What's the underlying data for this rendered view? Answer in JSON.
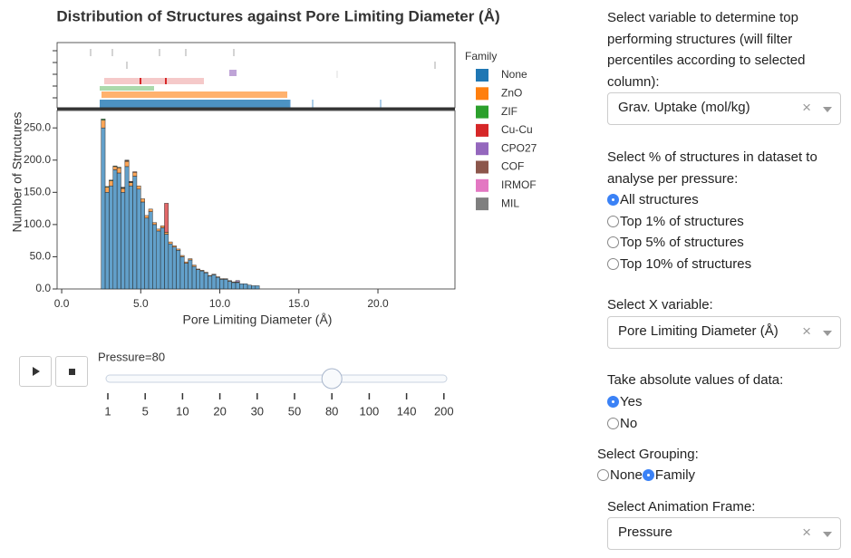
{
  "chart_data": {
    "type": "histogram",
    "title": "Distribution of Structures against Pore Limiting Diameter (Å)",
    "xlabel": "Pore Limiting Diameter (Å)",
    "ylabel": "Number of Structures",
    "legend_title": "Family",
    "bins": [
      2.5,
      2.75,
      3.0,
      3.25,
      3.5,
      3.75,
      4.0,
      4.25,
      4.5,
      4.75,
      5.0,
      5.25,
      5.5,
      5.75,
      6.0,
      6.25,
      6.5,
      6.75,
      7.0,
      7.25,
      7.5,
      7.75,
      8.0,
      8.25,
      8.5,
      8.75,
      9.0,
      9.25,
      9.5,
      9.75,
      10.0,
      10.25,
      10.5,
      10.75,
      11.0,
      11.25,
      11.5,
      11.75,
      12.0,
      12.25,
      12.5
    ],
    "series": [
      {
        "name": "None",
        "color": "#1f77b4",
        "values": [
          250,
          150,
          160,
          185,
          180,
          150,
          190,
          160,
          175,
          155,
          135,
          110,
          120,
          100,
          90,
          95,
          85,
          70,
          65,
          60,
          50,
          40,
          45,
          35,
          30,
          28,
          25,
          20,
          22,
          18,
          15,
          15,
          12,
          10,
          10,
          8,
          8,
          6,
          5,
          5
        ]
      },
      {
        "name": "ZnO",
        "color": "#ff7f0e",
        "values": [
          12,
          8,
          8,
          5,
          8,
          6,
          8,
          5,
          6,
          5,
          5,
          4,
          4,
          3,
          3,
          3,
          3,
          3,
          2,
          2,
          2,
          2,
          2,
          2,
          1,
          1,
          1,
          1,
          1,
          1,
          1,
          1,
          1,
          1,
          1,
          0,
          0,
          0,
          0,
          0
        ]
      },
      {
        "name": "ZIF",
        "color": "#2ca02c",
        "values": [
          2,
          1,
          1,
          1,
          1,
          1,
          1,
          1,
          0,
          0,
          0,
          0,
          0,
          0,
          0,
          0,
          0,
          0,
          0,
          0,
          0,
          0,
          0,
          0,
          0,
          0,
          0,
          0,
          0,
          0,
          0,
          0,
          0,
          0,
          0,
          0,
          0,
          0,
          0,
          0
        ]
      },
      {
        "name": "Cu-Cu",
        "color": "#d62728",
        "values": [
          0,
          0,
          0,
          0,
          0,
          1,
          1,
          1,
          1,
          0,
          0,
          0,
          0,
          0,
          0,
          0,
          45,
          0,
          0,
          0,
          0,
          0,
          0,
          0,
          0,
          0,
          0,
          0,
          0,
          0,
          0,
          0,
          0,
          0,
          0,
          0,
          0,
          0,
          0,
          0
        ]
      },
      {
        "name": "CPO27",
        "color": "#9467bd",
        "values": [
          0,
          0,
          0,
          0,
          0,
          0,
          0,
          0,
          0,
          0,
          0,
          0,
          0,
          0,
          0,
          0,
          0,
          0,
          0,
          0,
          0,
          0,
          0,
          0,
          0,
          0,
          0,
          0,
          0,
          0,
          0,
          0,
          0,
          0,
          2,
          0,
          0,
          0,
          0,
          0
        ]
      },
      {
        "name": "COF",
        "color": "#8c564b",
        "values": [
          0,
          0,
          0,
          0,
          0,
          0,
          0,
          0,
          0,
          0,
          0,
          0,
          0,
          0,
          0,
          0,
          0,
          0,
          0,
          0,
          0,
          0,
          0,
          0,
          0,
          0,
          0,
          0,
          0,
          0,
          0,
          0,
          0,
          0,
          0,
          0,
          0,
          0,
          0,
          0
        ]
      },
      {
        "name": "IRMOF",
        "color": "#e377c2",
        "values": [
          0,
          0,
          0,
          0,
          0,
          0,
          0,
          0,
          0,
          0,
          0,
          0,
          0,
          0,
          0,
          0,
          0,
          0,
          0,
          0,
          0,
          0,
          0,
          0,
          0,
          0,
          0,
          0,
          0,
          0,
          0,
          0,
          0,
          0,
          0,
          0,
          0,
          0,
          0,
          0
        ]
      },
      {
        "name": "MIL",
        "color": "#7f7f7f",
        "values": [
          0,
          0,
          0,
          0,
          0,
          0,
          0,
          0,
          0,
          0,
          0,
          0,
          0,
          0,
          0,
          0,
          0,
          0,
          0,
          0,
          0,
          0,
          0,
          0,
          0,
          0,
          0,
          0,
          0,
          0,
          0,
          0,
          0,
          0,
          0,
          0,
          0,
          0,
          0,
          0
        ]
      }
    ],
    "xlim": [
      -0.29,
      24.87
    ],
    "ylim": [
      0,
      277
    ],
    "xticks": [
      {
        "value": 0,
        "label": "0.0"
      },
      {
        "value": 5,
        "label": "5.0"
      },
      {
        "value": 10,
        "label": "10.0"
      },
      {
        "value": 15,
        "label": "15.0"
      },
      {
        "value": 20,
        "label": "20.0"
      }
    ],
    "yticks": [
      {
        "value": 0,
        "label": "0.0"
      },
      {
        "value": 50,
        "label": "50.0"
      },
      {
        "value": 100,
        "label": "100.0"
      },
      {
        "value": 150,
        "label": "150.0"
      },
      {
        "value": 200,
        "label": "200.0"
      },
      {
        "value": 250,
        "label": "250.0"
      }
    ]
  },
  "slider": {
    "label": "Pressure=80",
    "steps": [
      1,
      5,
      10,
      20,
      30,
      50,
      80,
      100,
      140,
      200
    ],
    "value": 80
  },
  "controls": {
    "top_variable": {
      "label": "Select variable to determine top performing structures (will filter percentiles according to selected column):",
      "value": "Grav. Uptake (mol/kg)"
    },
    "percent": {
      "label": "Select % of structures in dataset to analyse per pressure:",
      "options": [
        "All structures",
        "Top 1% of structures",
        "Top 5% of structures",
        "Top 10% of structures"
      ],
      "selected": 0
    },
    "x_variable": {
      "label": "Select X variable:",
      "value": "Pore Limiting Diameter (Å)"
    },
    "absolute": {
      "label": "Take absolute values of data:",
      "options": [
        "Yes",
        "No"
      ],
      "selected": 0
    },
    "grouping": {
      "label": "Select Grouping:",
      "options": [
        "None",
        "Family"
      ],
      "selected": 1
    },
    "animation_frame": {
      "label": "Select Animation Frame:",
      "value": "Pressure"
    }
  }
}
